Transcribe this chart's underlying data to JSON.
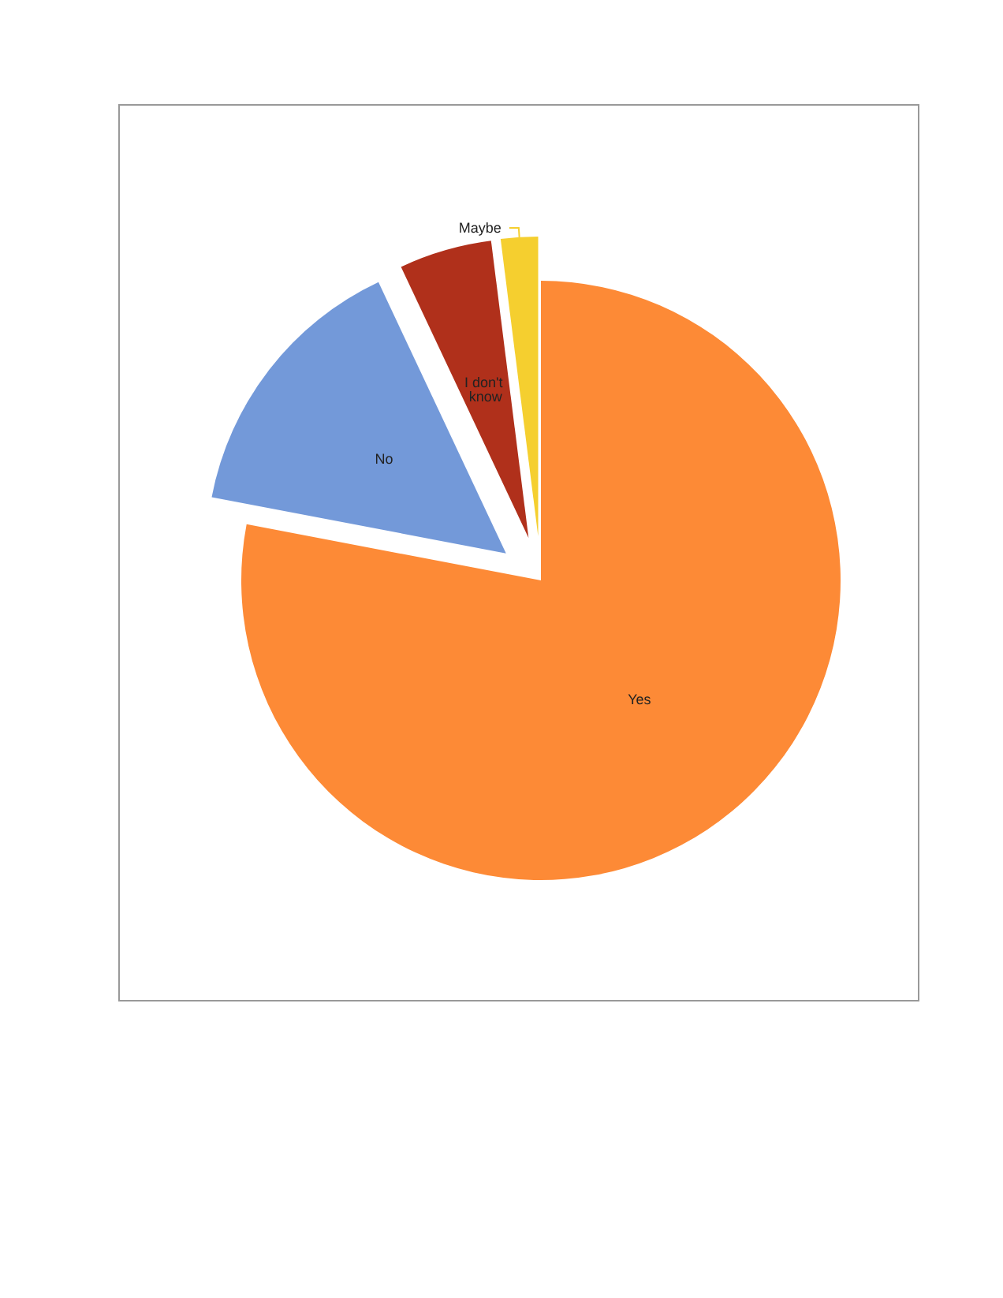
{
  "chart_data": {
    "type": "pie",
    "categories": [
      "Yes",
      "No",
      "I don't know",
      "Maybe"
    ],
    "values": [
      78,
      15,
      5,
      2
    ],
    "colors": [
      "#fd8a36",
      "#7399d9",
      "#b0301b",
      "#f5cf2f"
    ],
    "legend": false
  }
}
